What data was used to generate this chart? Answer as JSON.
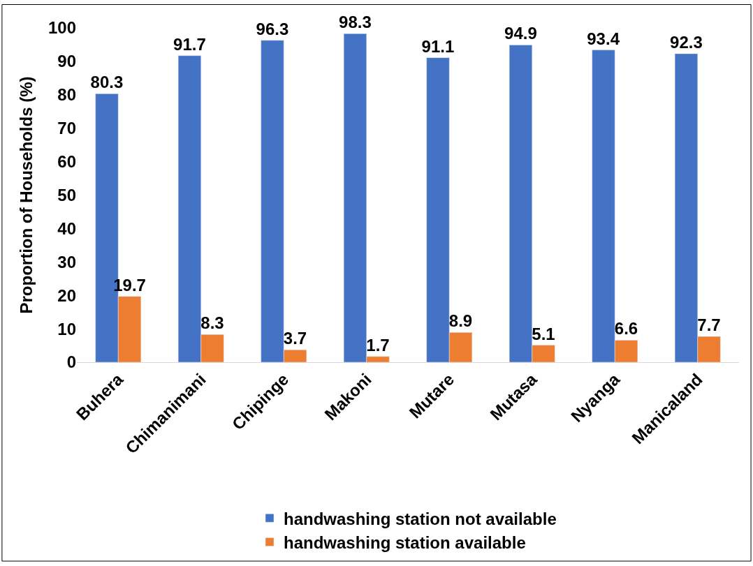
{
  "chart_data": {
    "type": "bar",
    "ylabel": "Proportion of Households (%)",
    "categories": [
      "Buhera",
      "Chimanimani",
      "Chipinge",
      "Makoni",
      "Mutare",
      "Mutasa",
      "Nyanga",
      "Manicaland"
    ],
    "series": [
      {
        "name": "handwashing station not available",
        "color": "#4472c4",
        "values": [
          80.3,
          91.7,
          96.3,
          98.3,
          91.1,
          94.9,
          93.4,
          92.3
        ]
      },
      {
        "name": "handwashing station available",
        "color": "#ed7d31",
        "values": [
          19.7,
          8.3,
          3.7,
          1.7,
          8.9,
          5.1,
          6.6,
          7.7
        ]
      }
    ],
    "ylim": [
      0,
      100
    ],
    "yticks": [
      0,
      10,
      20,
      30,
      40,
      50,
      60,
      70,
      80,
      90,
      100
    ],
    "data_labels": true,
    "legend": "bottom"
  }
}
